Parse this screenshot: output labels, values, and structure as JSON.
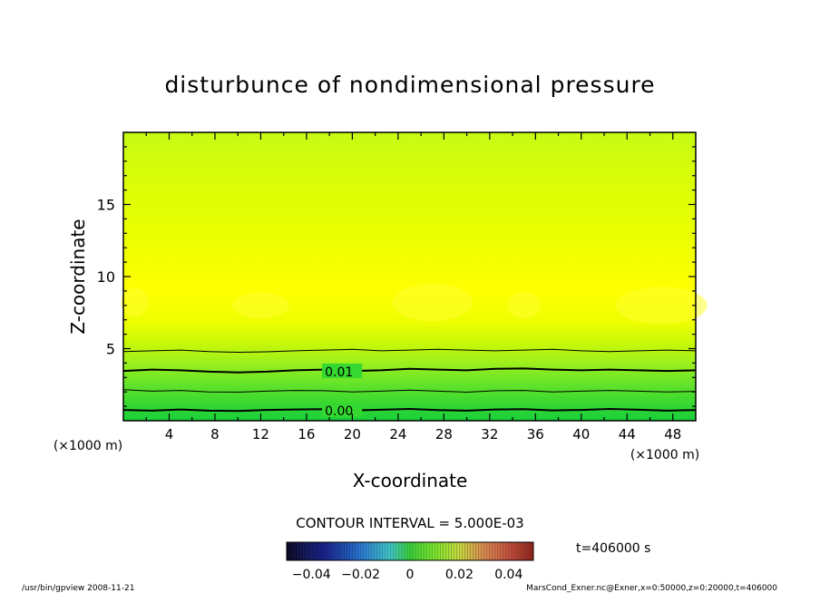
{
  "chart_data": {
    "type": "heatmap",
    "title": "disturbunce of nondimensional pressure",
    "xlabel": "X-coordinate",
    "ylabel": "Z-coordinate",
    "xunit_left": "(×1000 m)",
    "xunit_right": "(×1000 m)",
    "xlim": [
      0,
      50
    ],
    "ylim": [
      0,
      20
    ],
    "x_ticks": [
      4,
      8,
      12,
      16,
      20,
      24,
      28,
      32,
      36,
      40,
      44,
      48
    ],
    "y_ticks": [
      5,
      10,
      15
    ],
    "contour_interval_text": "CONTOUR INTERVAL = 5.000E-03",
    "contour_labels": [
      {
        "text": "0.01",
        "x": 17.6,
        "z": 3.4
      },
      {
        "text": "0.00",
        "x": 17.6,
        "z": 0.7
      }
    ],
    "contours": [
      {
        "level": 0.0,
        "z": [
          0.75,
          0.7,
          0.78,
          0.7,
          0.68,
          0.75,
          0.78,
          0.8,
          0.72,
          0.76,
          0.82,
          0.74,
          0.7,
          0.78,
          0.8,
          0.72,
          0.75,
          0.82,
          0.76,
          0.7,
          0.74
        ],
        "bold": true
      },
      {
        "level": 0.005,
        "z": [
          2.15,
          2.05,
          2.1,
          2.0,
          1.98,
          2.05,
          2.1,
          2.08,
          2.0,
          2.05,
          2.12,
          2.05,
          1.98,
          2.08,
          2.1,
          2.0,
          2.05,
          2.1,
          2.05,
          2.0,
          2.03
        ],
        "bold": false
      },
      {
        "level": 0.01,
        "z": [
          3.45,
          3.55,
          3.5,
          3.4,
          3.35,
          3.4,
          3.5,
          3.55,
          3.45,
          3.5,
          3.6,
          3.55,
          3.5,
          3.6,
          3.62,
          3.55,
          3.5,
          3.55,
          3.5,
          3.45,
          3.5
        ],
        "bold": true
      },
      {
        "level": 0.015,
        "z": [
          4.8,
          4.85,
          4.9,
          4.8,
          4.75,
          4.78,
          4.85,
          4.9,
          4.95,
          4.85,
          4.9,
          4.95,
          4.9,
          4.85,
          4.9,
          4.95,
          4.85,
          4.8,
          4.85,
          4.9,
          4.85
        ],
        "bold": false
      }
    ],
    "colorbar": {
      "vmin": -0.05,
      "vmax": 0.05,
      "tick_labels": [
        "−0.04",
        "−0.02",
        "0",
        "0.02",
        "0.04"
      ],
      "tick_values": [
        -0.04,
        -0.02,
        0,
        0.02,
        0.04
      ]
    },
    "time_label": "t=406000 s"
  },
  "footer": {
    "left": "/usr/bin/gpview   2008-11-21",
    "right": "MarsCond_Exner.nc@Exner,x=0:50000,z=0:20000,t=406000"
  },
  "colors": {
    "low": "#0c2a6e",
    "mid": "#30d830",
    "high_yellow": "#ffff00",
    "upper_green": "#c8ff10",
    "max": "#c83020"
  }
}
